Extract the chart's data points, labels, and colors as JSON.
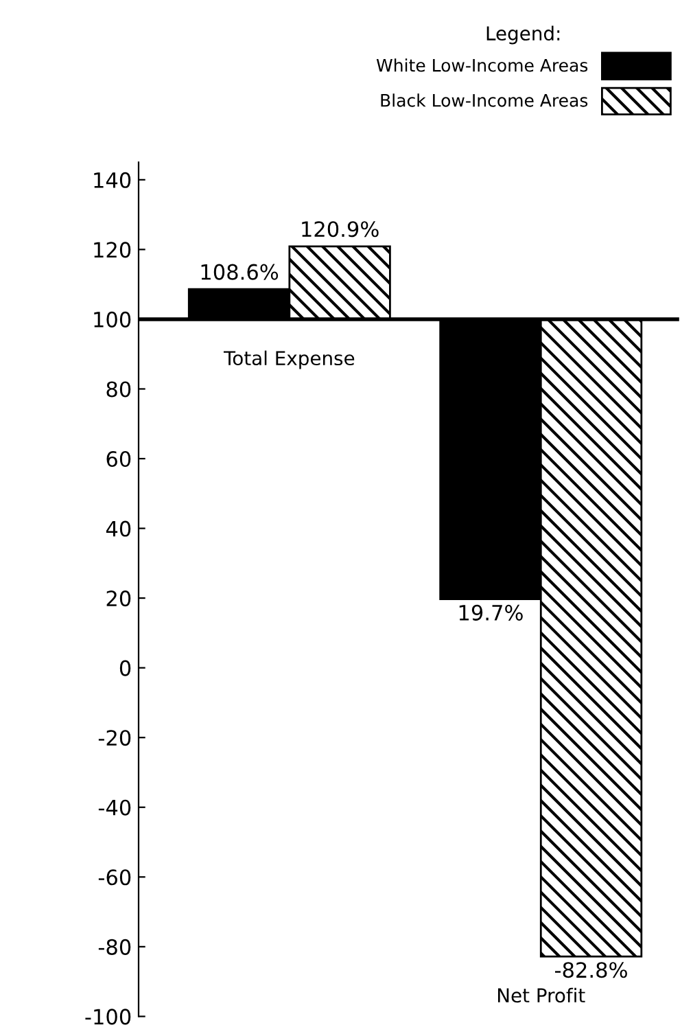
{
  "chart_data": {
    "type": "bar",
    "categories": [
      "Total Expense",
      "Net Profit"
    ],
    "series": [
      {
        "name": "White Low-Income Areas",
        "color": "#000000",
        "values": [
          8.6,
          -80.3
        ],
        "base": [
          100,
          100
        ],
        "value_labels": [
          "108.6%",
          "19.7%"
        ]
      },
      {
        "name": "Black Low-Income Areas",
        "color": "#000000",
        "values": [
          20.9,
          -182.8
        ],
        "base": [
          100,
          100
        ],
        "value_labels": [
          "120.9%",
          "-82.8%"
        ]
      }
    ],
    "legend_title": "Legend:",
    "legend": "top right",
    "ylim": [
      -100,
      145
    ],
    "yticks": [
      -100,
      -80,
      -60,
      -40,
      -20,
      0,
      20,
      40,
      60,
      80,
      100,
      120,
      140
    ],
    "ref_lines": [
      {
        "axis": "y",
        "value": 100,
        "color": "#000000"
      }
    ],
    "grid": false
  }
}
